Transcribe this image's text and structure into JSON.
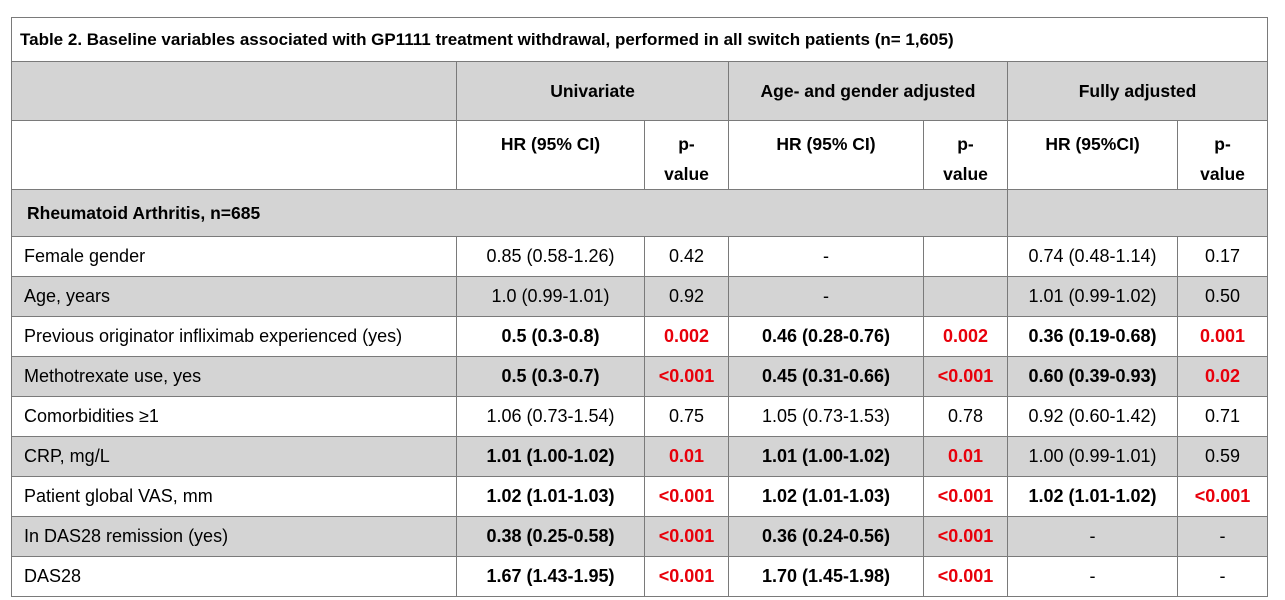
{
  "title": "Table 2. Baseline variables associated with GP1111 treatment withdrawal, performed in all switch patients (n= 1,605)",
  "groups": [
    "Univariate",
    "Age- and gender adjusted",
    "Fully adjusted"
  ],
  "subheaders": {
    "uni_hr": "HR (95% CI)",
    "uni_p": "p-value",
    "age_hr": "HR (95% CI)",
    "age_p": "p-value",
    "full_hr": "HR (95%CI)",
    "full_p": "p-value"
  },
  "section": "Rheumatoid Arthritis, n=685",
  "rows": [
    {
      "label": "Female gender",
      "c": [
        "0.85 (0.58-1.26)",
        "0.42",
        "-",
        "",
        "0.74 (0.48-1.14)",
        "0.17"
      ]
    },
    {
      "label": "Age, years",
      "c": [
        "1.0 (0.99-1.01)",
        "0.92",
        "-",
        "",
        "1.01 (0.99-1.02)",
        "0.50"
      ]
    },
    {
      "label": "Previous originator infliximab experienced (yes)",
      "c": [
        "0.5 (0.3-0.8)",
        "0.002",
        "0.46 (0.28-0.76)",
        "0.002",
        "0.36 (0.19-0.68)",
        "0.001"
      ]
    },
    {
      "label": "Methotrexate use, yes",
      "c": [
        "0.5 (0.3-0.7)",
        "<0.001",
        "0.45 (0.31-0.66)",
        "<0.001",
        "0.60 (0.39-0.93)",
        "0.02"
      ]
    },
    {
      "label": "Comorbidities ≥1",
      "c": [
        "1.06 (0.73-1.54)",
        "0.75",
        "1.05 (0.73-1.53)",
        "0.78",
        "0.92 (0.60-1.42)",
        "0.71"
      ]
    },
    {
      "label": "CRP, mg/L",
      "c": [
        "1.01 (1.00-1.02)",
        "0.01",
        "1.01 (1.00-1.02)",
        "0.01",
        "1.00 (0.99-1.01)",
        "0.59"
      ]
    },
    {
      "label": "Patient global VAS, mm",
      "c": [
        "1.02 (1.01-1.03)",
        "<0.001",
        "1.02 (1.01-1.03)",
        "<0.001",
        "1.02 (1.01-1.02)",
        "<0.001"
      ]
    },
    {
      "label": "In DAS28 remission (yes)",
      "c": [
        "0.38 (0.25-0.58)",
        "<0.001",
        "0.36 (0.24-0.56)",
        "<0.001",
        "-",
        "-"
      ]
    },
    {
      "label": "DAS28",
      "c": [
        "1.67 (1.43-1.95)",
        "<0.001",
        "1.70 (1.45-1.98)",
        "<0.001",
        "-",
        "-"
      ]
    }
  ],
  "colors": {
    "header_gray": "#d4d4d4",
    "significant_red": "#e8000b",
    "border": "#7a7a7a"
  }
}
